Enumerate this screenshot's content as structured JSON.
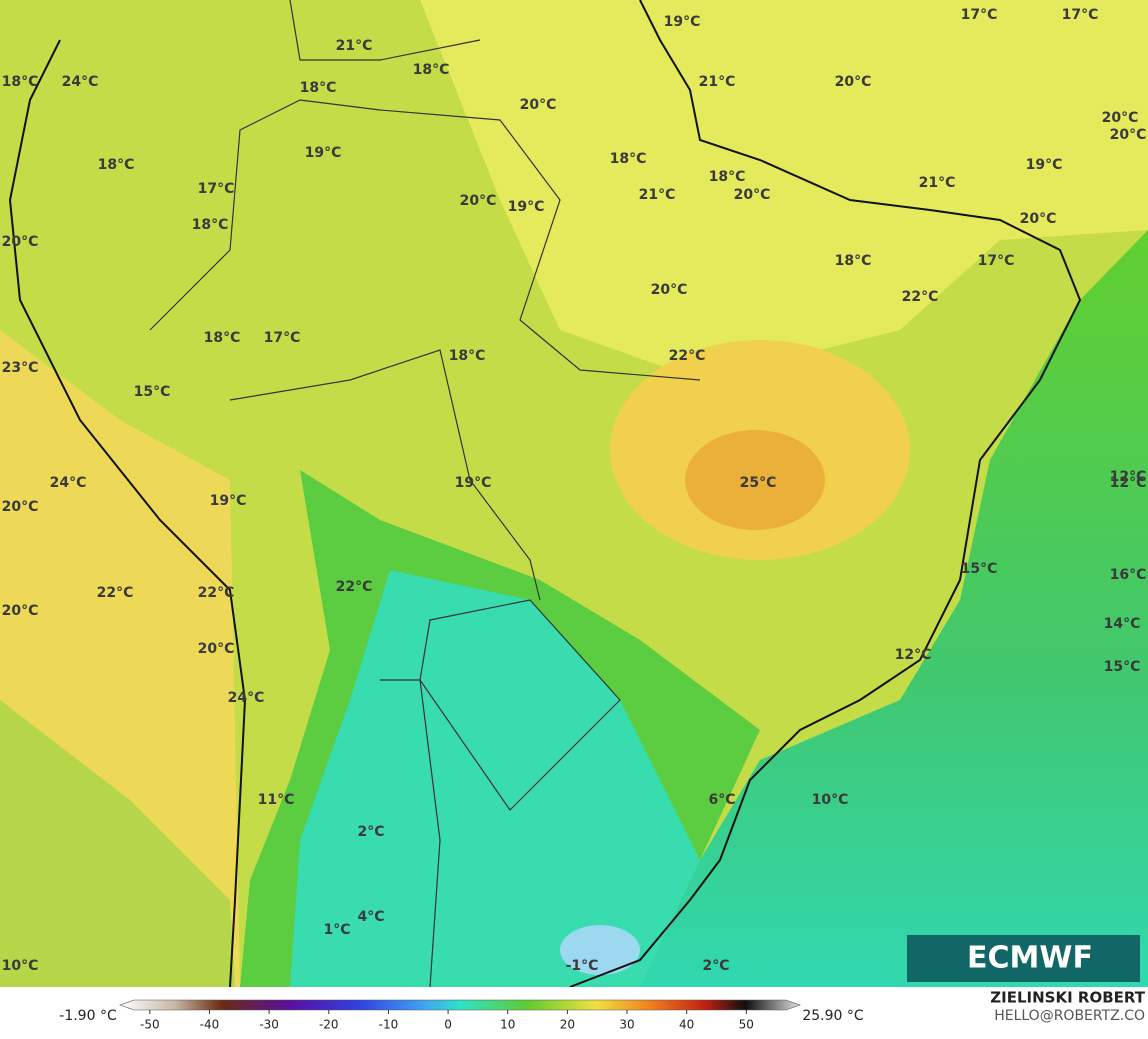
{
  "map": {
    "labels": [
      "19°C",
      "17°C",
      "17°C",
      "21°C",
      "18°C",
      "21°C",
      "20°C",
      "18°C",
      "24°C",
      "18°C",
      "20°C",
      "20°C",
      "20°C",
      "19°C",
      "18°C",
      "18°C",
      "19°C",
      "18°C",
      "17°C",
      "21°C",
      "21°C",
      "20°C",
      "20°C",
      "19°C",
      "18°C",
      "20°C",
      "20°C",
      "18°C",
      "17°C",
      "20°C",
      "22°C",
      "18°C",
      "17°C",
      "18°C",
      "22°C",
      "23°C",
      "15°C",
      "24°C",
      "25°C",
      "19°C",
      "12°C",
      "12°C",
      "20°C",
      "19°C",
      "15°C",
      "16°C",
      "22°C",
      "22°C",
      "22°C",
      "20°C",
      "14°C",
      "20°C",
      "12°C",
      "15°C",
      "24°C",
      "11°C",
      "6°C",
      "10°C",
      "2°C",
      "4°C",
      "1°C",
      "10°C",
      "-1°C",
      "2°C"
    ]
  },
  "colorbar": {
    "min_label": "-1.90 °C",
    "max_label": "25.90 °C",
    "lim": [
      -55,
      59
    ],
    "ticks": [
      -50,
      -40,
      -30,
      -20,
      -10,
      0,
      10,
      20,
      30,
      40,
      50
    ]
  },
  "logo": "ECMWF",
  "credit": {
    "name": "ZIELINSKI ROBERT",
    "email": "HELLO@ROBERTZ.CO"
  }
}
